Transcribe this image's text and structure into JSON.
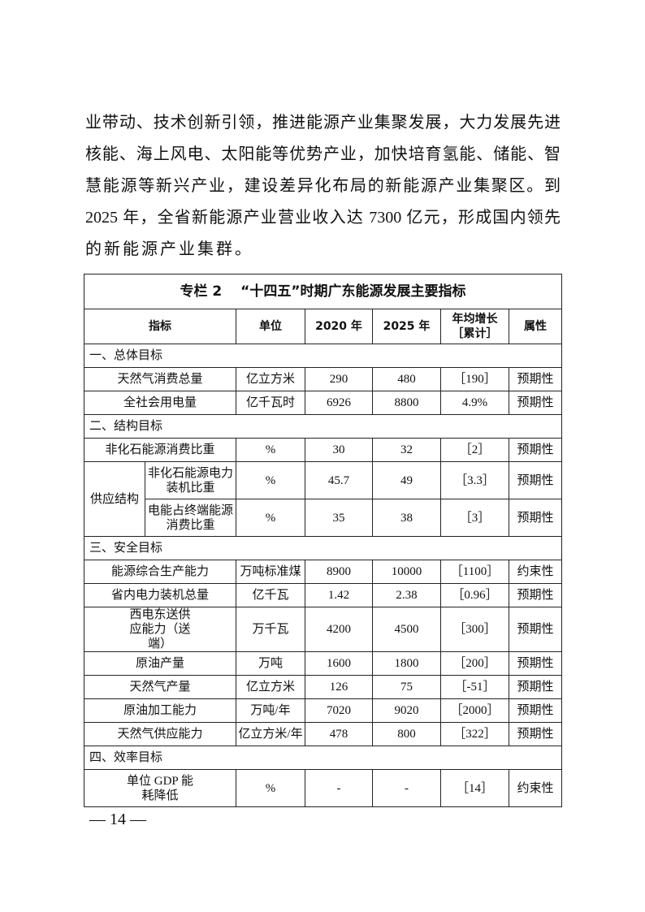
{
  "paragraph": [
    "业带动、技术创新引领，推进能源产业集聚发展，大力发展先进",
    "核能、海上风电、太阳能等优势产业，加快培育氢能、储能、智",
    "慧能源等新兴产业，建设差异化布局的新能源产业集聚区。到",
    "2025 年，全省新能源产业营业收入达 7300 亿元，形成国内领先",
    "的新能源产业集群。"
  ],
  "table": {
    "title": "专栏 2　 “十四五”时期广东能源发展主要指标",
    "headers": [
      "指标",
      "单位",
      "2020 年",
      "2025 年",
      "年均增长［累计］",
      "属性"
    ],
    "sections": [
      {
        "name": "一、总体目标",
        "rows": [
          [
            "天然气消费总量",
            "亿立方米",
            "290",
            "480",
            "［190］",
            "预期性"
          ],
          [
            "全社会用电量",
            "亿千瓦时",
            "6926",
            "8800",
            "4.9%",
            "预期性"
          ]
        ]
      },
      {
        "name": "二、结构目标",
        "rows": [
          [
            "非化石能源消费比重",
            "%",
            "30",
            "32",
            "［2］",
            "预期性"
          ]
        ],
        "group": "供应结构",
        "group_rows": [
          [
            "非化石能源电力装机比重",
            "%",
            "45.7",
            "49",
            "［3.3］",
            "预期性"
          ],
          [
            "电能占终端能源消费比重",
            "%",
            "35",
            "38",
            "［3］",
            "预期性"
          ]
        ]
      },
      {
        "name": "三、安全目标",
        "rows": [
          [
            "能源综合生产能力",
            "万吨标准煤",
            "8900",
            "10000",
            "［1100］",
            "约束性"
          ],
          [
            "省内电力装机总量",
            "亿千瓦",
            "1.42",
            "2.38",
            "［0.96］",
            "预期性"
          ],
          [
            "西电东送供应能力（送端）",
            "万千瓦",
            "4200",
            "4500",
            "［300］",
            "预期性"
          ],
          [
            "原油产量",
            "万吨",
            "1600",
            "1800",
            "［200］",
            "预期性"
          ],
          [
            "天然气产量",
            "亿立方米",
            "126",
            "75",
            "［-51］",
            "预期性"
          ],
          [
            "原油加工能力",
            "万吨/年",
            "7020",
            "9020",
            "［2000］",
            "预期性"
          ],
          [
            "天然气供应能力",
            "亿立方米/年",
            "478",
            "800",
            "［322］",
            "预期性"
          ]
        ]
      },
      {
        "name": "四、效率目标",
        "rows": [
          [
            "单位 GDP 能耗降低",
            "%",
            "-",
            "-",
            "［14］",
            "约束性"
          ]
        ]
      }
    ]
  },
  "page_number": "— 14 —"
}
